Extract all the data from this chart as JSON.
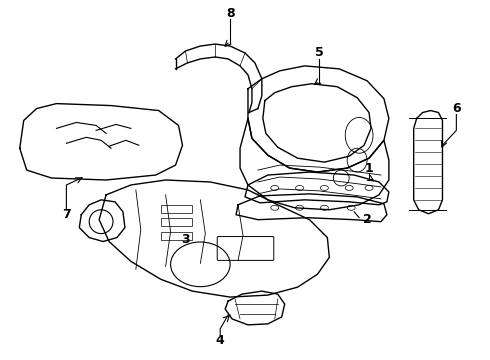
{
  "background_color": "#ffffff",
  "line_color": "#000000",
  "line_width": 1.0,
  "fig_width": 4.9,
  "fig_height": 3.6,
  "dpi": 100
}
